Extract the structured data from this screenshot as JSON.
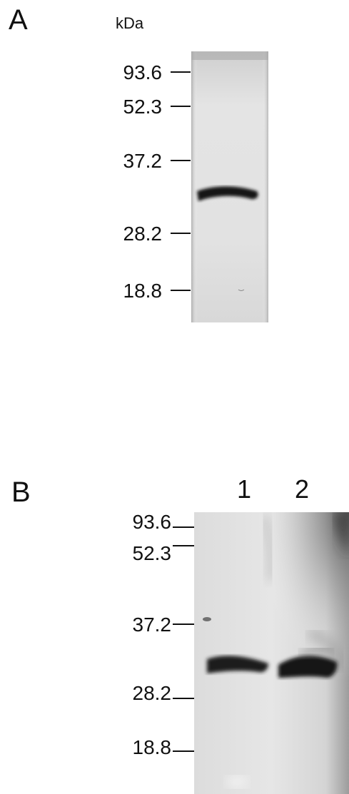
{
  "panel_a": {
    "letter": "A",
    "unit": "kDa",
    "markers": [
      "93.6",
      "52.3",
      "37.2",
      "28.2",
      "18.8"
    ]
  },
  "panel_b": {
    "letter": "B",
    "lanes": [
      "1",
      "2"
    ],
    "markers": [
      "93.6",
      "52.3",
      "37.2",
      "28.2",
      "18.8"
    ]
  }
}
